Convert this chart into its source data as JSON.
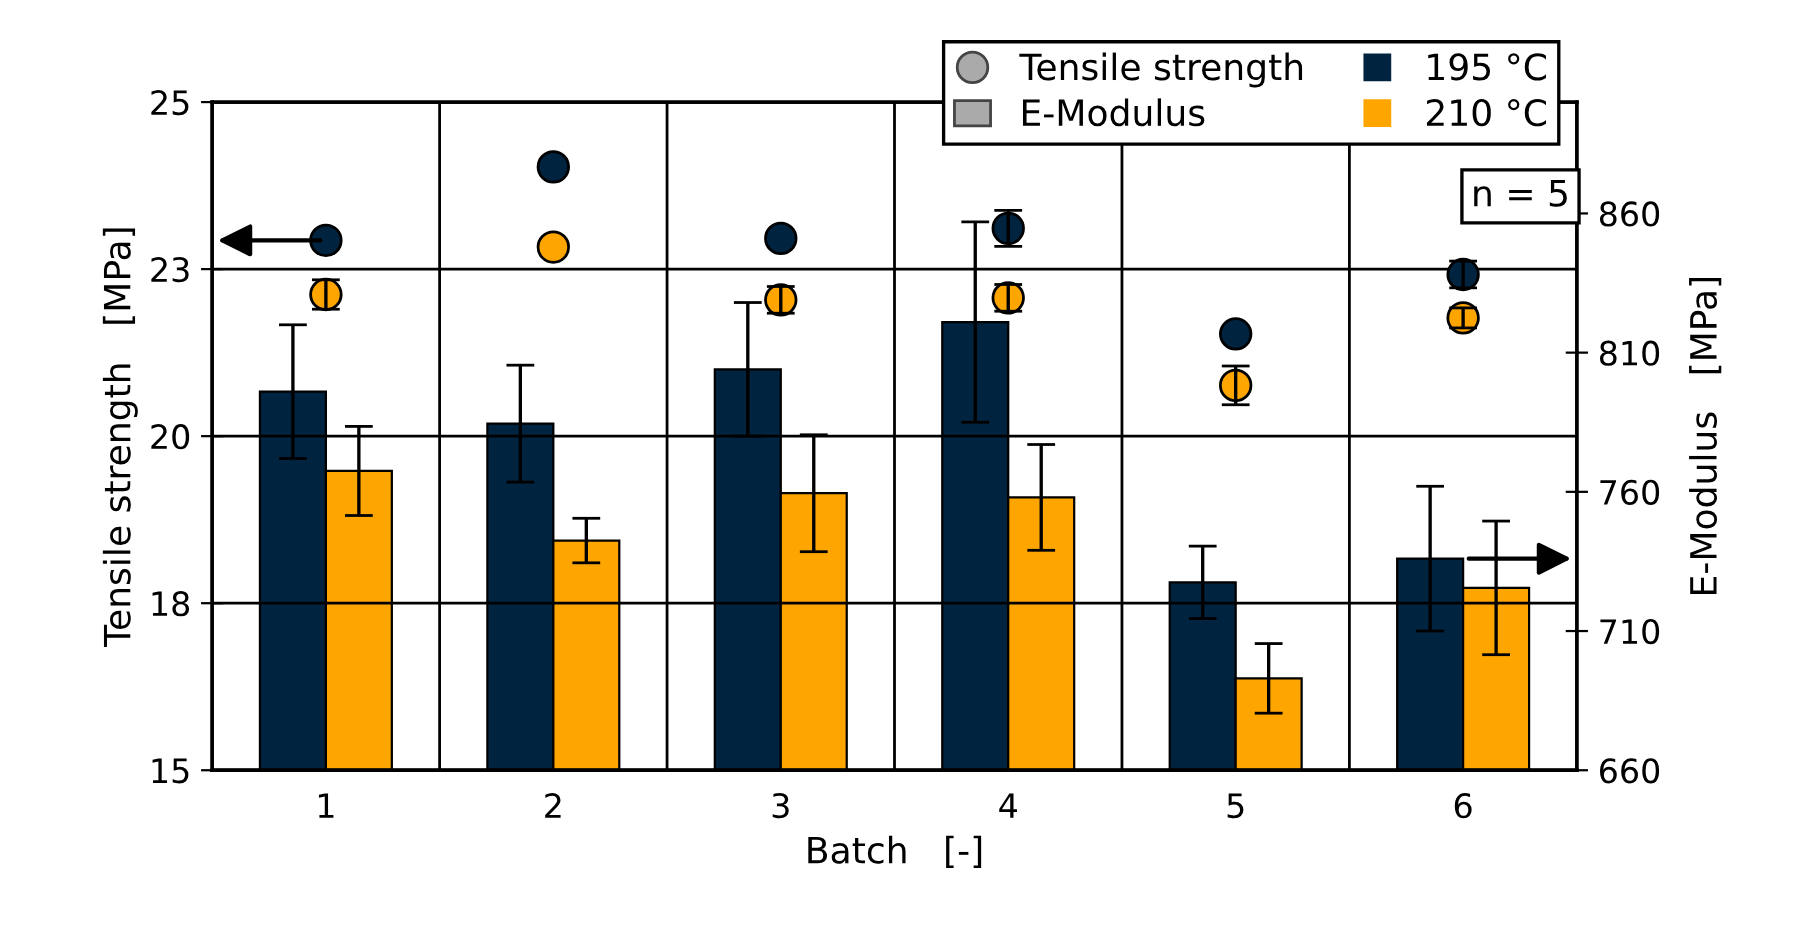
{
  "chart_data": {
    "type": "bar",
    "categories": [
      "1",
      "2",
      "3",
      "4",
      "5",
      "6"
    ],
    "xlabel": "Batch   [-]",
    "ylabel": "Tensile strength   [MPa]",
    "y2label": "E-Modulus   [MPa]",
    "series": [
      {
        "name": "195 °C",
        "axis": "y2",
        "color": "#00233f",
        "values": [
          796,
          784.5,
          804,
          821,
          727.5,
          736
        ],
        "errors": [
          24,
          21,
          24,
          36,
          13,
          26
        ]
      },
      {
        "name": "210 °C",
        "axis": "y2",
        "color": "#ffa500",
        "values": [
          767.5,
          742.5,
          759.5,
          758,
          693,
          725.5
        ],
        "errors": [
          16,
          8,
          21,
          19,
          12.5,
          24
        ]
      },
      {
        "type": "scatter",
        "axis": "y",
        "color": "#00233f",
        "values": [
          22.93,
          24.03,
          22.96,
          23.11,
          21.53,
          22.42
        ],
        "errors": [
          null,
          null,
          null,
          0.27,
          null,
          0.2
        ]
      },
      {
        "type": "scatter",
        "axis": "y",
        "color": "#ffa500",
        "values": [
          22.12,
          22.83,
          22.04,
          22.07,
          20.76,
          21.77
        ],
        "errors": [
          0.22,
          null,
          0.2,
          0.2,
          0.29,
          0.15
        ]
      }
    ],
    "ylim": [
      15,
      25
    ],
    "yticks": [
      15,
      {
        "value": 17.5,
        "label": "18"
      },
      20,
      {
        "value": 22.5,
        "label": "23"
      },
      25
    ],
    "y2lim": [
      660,
      900
    ],
    "y2ticks": [
      660,
      710,
      760,
      810,
      860
    ],
    "annotations": [
      "Tensile strength",
      "E-Modulus",
      "n = 5"
    ],
    "grid": true,
    "legend": "top right",
    "marker": "circle"
  }
}
